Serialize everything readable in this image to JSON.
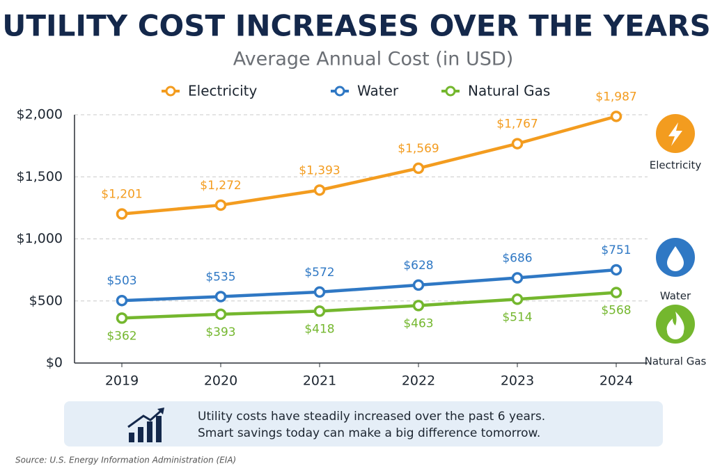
{
  "chart_data": {
    "type": "line",
    "title": "UTILITY COST INCREASES OVER THE YEARS",
    "subtitle": "Average Annual Cost (in USD)",
    "categories": [
      "2019",
      "2020",
      "2021",
      "2022",
      "2023",
      "2024"
    ],
    "series": [
      {
        "name": "Electricity",
        "color": "#f39c1f",
        "label_position": "above",
        "values": [
          1201,
          1272,
          1393,
          1569,
          1767,
          1987
        ],
        "value_labels": [
          "$1,201",
          "$1,272",
          "$1,393",
          "$1,569",
          "$1,767",
          "$1,987"
        ]
      },
      {
        "name": "Water",
        "color": "#2f78c4",
        "label_position": "above",
        "values": [
          503,
          535,
          572,
          628,
          686,
          751
        ],
        "value_labels": [
          "$503",
          "$535",
          "$572",
          "$628",
          "$686",
          "$751"
        ]
      },
      {
        "name": "Natural Gas",
        "color": "#74b72e",
        "label_position": "below",
        "values": [
          362,
          393,
          418,
          463,
          514,
          568
        ],
        "value_labels": [
          "$362",
          "$393",
          "$418",
          "$463",
          "$514",
          "$568"
        ]
      }
    ],
    "ylim": [
      0,
      2000
    ],
    "yticks": [
      {
        "value": 0,
        "label": "$0"
      },
      {
        "value": 500,
        "label": "$500"
      },
      {
        "value": 1000,
        "label": "$1,000"
      },
      {
        "value": 1500,
        "label": "$1,500"
      },
      {
        "value": 2000,
        "label": "$2,000"
      }
    ],
    "grid": true,
    "annotations": [
      "Utility costs have steadily increased over the past 6 years.",
      "Smart savings today can make a big difference tomorrow."
    ],
    "source": "Source: U.S. Energy Information Administration (EIA)"
  }
}
